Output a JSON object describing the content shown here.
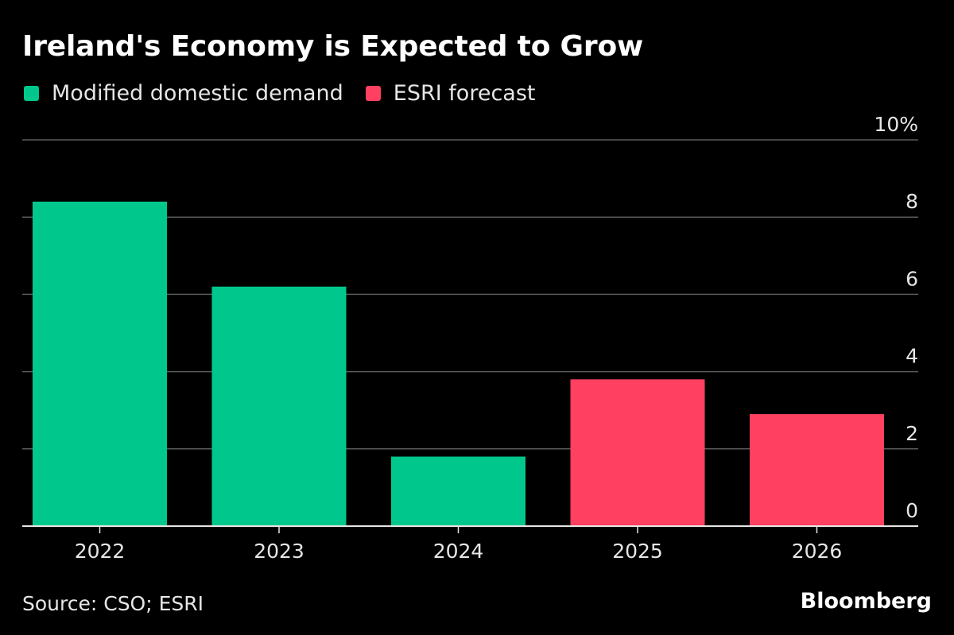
{
  "chart_data": {
    "type": "bar",
    "title": "Ireland's Economy is Expected to Grow",
    "categories": [
      "2022",
      "2023",
      "2024",
      "2025",
      "2026"
    ],
    "series": [
      {
        "name": "Modified domestic demand",
        "color": "#00c88c",
        "values": [
          8.4,
          6.2,
          1.8,
          null,
          null
        ]
      },
      {
        "name": "ESRI forecast",
        "color": "#ff4060",
        "values": [
          null,
          null,
          null,
          3.8,
          2.9
        ]
      }
    ],
    "ylim": [
      0,
      10
    ],
    "yticks": [
      0,
      2,
      4,
      6,
      8,
      10
    ],
    "ytick_labels": [
      "0",
      "2",
      "4",
      "6",
      "8",
      "10%"
    ],
    "xlabel": "",
    "ylabel": "",
    "grid": true,
    "legend": [
      "Modified domestic demand",
      "ESRI forecast"
    ]
  },
  "legend_items": [
    {
      "label": "Modified domestic demand",
      "color": "#00c88c"
    },
    {
      "label": "ESRI forecast",
      "color": "#ff4060"
    }
  ],
  "footer": {
    "source": "Source: CSO; ESRI",
    "brand": "Bloomberg"
  }
}
